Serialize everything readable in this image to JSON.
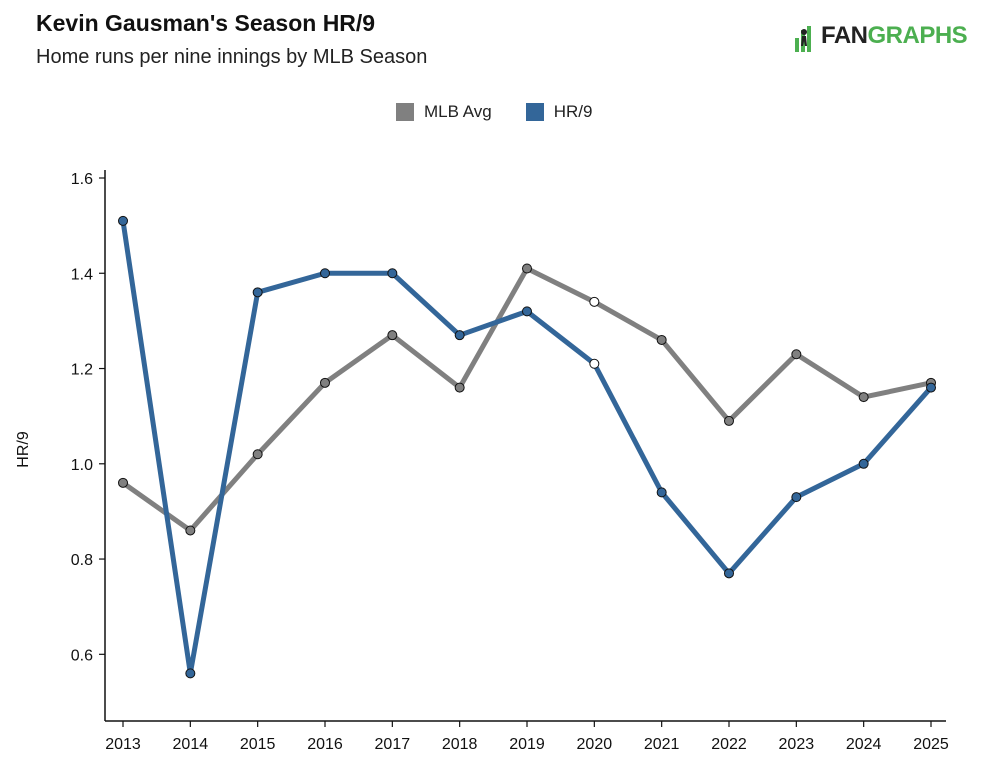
{
  "header": {
    "title": "Kevin Gausman's Season HR/9",
    "subtitle": "Home runs per nine innings by MLB Season"
  },
  "logo": {
    "fan": "FAN",
    "graphs": "GRAPHS",
    "brand_color": "#4caf50"
  },
  "chart_data": {
    "type": "line",
    "title": "Kevin Gausman's Season HR/9",
    "subtitle": "Home runs per nine innings by MLB Season",
    "xlabel": "",
    "ylabel": "HR/9",
    "ylim": [
      0.46,
      1.6
    ],
    "yticks": [
      0.6,
      0.8,
      1.0,
      1.2,
      1.4,
      1.6
    ],
    "ytick_labels": [
      "0.6",
      "0.8",
      "1.0",
      "1.2",
      "1.4",
      "1.6"
    ],
    "categories": [
      "2013",
      "2014",
      "2015",
      "2016",
      "2017",
      "2018",
      "2019",
      "2020",
      "2021",
      "2022",
      "2023",
      "2024",
      "2025"
    ],
    "legend_position": "top-center",
    "grid": false,
    "series": [
      {
        "name": "MLB Avg",
        "color": "#808080",
        "values": [
          0.96,
          0.86,
          1.02,
          1.17,
          1.27,
          1.16,
          1.41,
          1.34,
          1.26,
          1.09,
          1.23,
          1.14,
          1.17
        ]
      },
      {
        "name": "HR/9",
        "color": "#336699",
        "values": [
          1.51,
          0.56,
          1.36,
          1.4,
          1.4,
          1.27,
          1.32,
          1.21,
          0.94,
          0.77,
          0.93,
          1.0,
          1.16
        ]
      }
    ],
    "highlight_category": "2020"
  }
}
